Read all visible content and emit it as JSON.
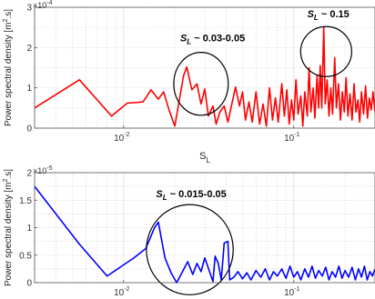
{
  "chart_data": [
    {
      "type": "line",
      "xlabel": "S",
      "xlabel_sub": "L",
      "ylabel": "Power spectral density [m",
      "ylabel_sup": "2",
      "ylabel_tail": ".s]",
      "x_scale": "log",
      "xlim": [
        0.003,
        0.3
      ],
      "ylim": [
        0,
        3
      ],
      "y_multiplier_base": "×10",
      "y_multiplier_exp": "-4",
      "grid": true,
      "x_ticks": [
        {
          "value": 0.01,
          "base": "10",
          "exp": "-2"
        },
        {
          "value": 0.1,
          "base": "10",
          "exp": "-1"
        }
      ],
      "y_ticks": [
        0,
        1,
        2,
        3
      ],
      "series": [
        {
          "color": "#ff0000",
          "points": [
            [
              0.003,
              0.5
            ],
            [
              0.0055,
              1.2
            ],
            [
              0.0085,
              0.3
            ],
            [
              0.0105,
              0.62
            ],
            [
              0.013,
              0.65
            ],
            [
              0.0145,
              0.95
            ],
            [
              0.016,
              0.72
            ],
            [
              0.0172,
              0.9
            ],
            [
              0.0185,
              0.45
            ],
            [
              0.02,
              0.05
            ],
            [
              0.0225,
              1.3
            ],
            [
              0.0235,
              1.52
            ],
            [
              0.0252,
              0.95
            ],
            [
              0.027,
              1.1
            ],
            [
              0.0285,
              0.6
            ],
            [
              0.03,
              0.97
            ],
            [
              0.0315,
              0.3
            ],
            [
              0.0335,
              0.55
            ],
            [
              0.035,
              0.1
            ],
            [
              0.0368,
              0.4
            ],
            [
              0.039,
              0.55
            ],
            [
              0.041,
              0.15
            ],
            [
              0.0435,
              0.65
            ],
            [
              0.0455,
              1.02
            ],
            [
              0.048,
              0.55
            ],
            [
              0.05,
              0.9
            ],
            [
              0.052,
              0.2
            ],
            [
              0.0545,
              0.65
            ],
            [
              0.057,
              0.15
            ],
            [
              0.06,
              0.9
            ],
            [
              0.063,
              0.1
            ],
            [
              0.066,
              0.6
            ],
            [
              0.069,
              0.05
            ],
            [
              0.072,
              1.0
            ],
            [
              0.075,
              0.2
            ],
            [
              0.078,
              0.75
            ],
            [
              0.081,
              0.15
            ],
            [
              0.085,
              1.1
            ],
            [
              0.088,
              0.3
            ],
            [
              0.091,
              0.95
            ],
            [
              0.094,
              0.1
            ],
            [
              0.097,
              0.7
            ],
            [
              0.1,
              0.2
            ],
            [
              0.103,
              1.2
            ],
            [
              0.106,
              0.35
            ],
            [
              0.11,
              0.8
            ],
            [
              0.113,
              0.05
            ],
            [
              0.116,
              0.9
            ],
            [
              0.12,
              0.3
            ],
            [
              0.123,
              1.5
            ],
            [
              0.126,
              0.4
            ],
            [
              0.13,
              1.0
            ],
            [
              0.133,
              0.25
            ],
            [
              0.137,
              1.3
            ],
            [
              0.14,
              0.5
            ],
            [
              0.143,
              1.55
            ],
            [
              0.146,
              0.5
            ],
            [
              0.15,
              2.5
            ],
            [
              0.153,
              0.6
            ],
            [
              0.157,
              1.2
            ],
            [
              0.161,
              0.3
            ],
            [
              0.165,
              1.0
            ],
            [
              0.169,
              0.35
            ],
            [
              0.174,
              1.75
            ],
            [
              0.178,
              0.5
            ],
            [
              0.183,
              1.1
            ],
            [
              0.188,
              0.2
            ],
            [
              0.193,
              0.9
            ],
            [
              0.198,
              0.4
            ],
            [
              0.203,
              1.25
            ],
            [
              0.208,
              0.3
            ],
            [
              0.214,
              0.85
            ],
            [
              0.22,
              0.2
            ],
            [
              0.226,
              1.1
            ],
            [
              0.232,
              0.4
            ],
            [
              0.238,
              0.7
            ],
            [
              0.244,
              0.15
            ],
            [
              0.25,
              0.9
            ],
            [
              0.257,
              0.35
            ],
            [
              0.264,
              1.05
            ],
            [
              0.271,
              0.25
            ],
            [
              0.278,
              0.75
            ],
            [
              0.285,
              0.45
            ],
            [
              0.292,
              0.9
            ],
            [
              0.3,
              0.4
            ]
          ]
        }
      ],
      "annotations": [
        {
          "text": "S",
          "sub": "L",
          "tail": " ~ 0.03-0.05",
          "x": 0.0215,
          "y": 2.15
        },
        {
          "text": "S",
          "sub": "L",
          "tail": " ~ 0.15",
          "x": 0.12,
          "y": 2.75
        }
      ],
      "ellipses": [
        {
          "cx": 0.0285,
          "cy": 1.1,
          "rx_decades": 0.16,
          "ry": 0.78
        },
        {
          "cx": 0.155,
          "cy": 1.9,
          "rx_decades": 0.15,
          "ry": 0.62
        }
      ]
    },
    {
      "type": "line",
      "xlabel": "",
      "ylabel": "Power spectral density [m",
      "ylabel_sup": "2",
      "ylabel_tail": ".s]",
      "x_scale": "log",
      "xlim": [
        0.003,
        0.3
      ],
      "ylim": [
        0,
        2
      ],
      "y_multiplier_base": "×10",
      "y_multiplier_exp": "-5",
      "grid": true,
      "x_ticks": [
        {
          "value": 0.01,
          "base": "10",
          "exp": "-2"
        },
        {
          "value": 0.1,
          "base": "10",
          "exp": "-1"
        }
      ],
      "y_ticks": [
        0,
        0.5,
        1,
        1.5,
        2
      ],
      "series": [
        {
          "color": "#0000ff",
          "points": [
            [
              0.003,
              1.75
            ],
            [
              0.0055,
              0.7
            ],
            [
              0.008,
              0.12
            ],
            [
              0.0115,
              0.45
            ],
            [
              0.0135,
              0.62
            ],
            [
              0.0152,
              1.0
            ],
            [
              0.016,
              1.1
            ],
            [
              0.0175,
              0.45
            ],
            [
              0.019,
              0.18
            ],
            [
              0.0205,
              0.0
            ],
            [
              0.0222,
              0.2
            ],
            [
              0.0238,
              0.38
            ],
            [
              0.0255,
              0.15
            ],
            [
              0.027,
              0.35
            ],
            [
              0.0285,
              0.2
            ],
            [
              0.03,
              0.45
            ],
            [
              0.032,
              0.2
            ],
            [
              0.0335,
              0.02
            ],
            [
              0.0345,
              0.48
            ],
            [
              0.036,
              0.35
            ],
            [
              0.0375,
              0.05
            ],
            [
              0.039,
              0.72
            ],
            [
              0.041,
              0.75
            ],
            [
              0.042,
              0.05
            ],
            [
              0.0445,
              0.1
            ],
            [
              0.047,
              0.2
            ],
            [
              0.05,
              0.07
            ],
            [
              0.053,
              0.18
            ],
            [
              0.056,
              0.05
            ],
            [
              0.06,
              0.22
            ],
            [
              0.064,
              0.1
            ],
            [
              0.068,
              0.25
            ],
            [
              0.072,
              0.05
            ],
            [
              0.076,
              0.2
            ],
            [
              0.08,
              0.12
            ],
            [
              0.085,
              0.25
            ],
            [
              0.09,
              0.08
            ],
            [
              0.095,
              0.3
            ],
            [
              0.1,
              0.1
            ],
            [
              0.105,
              0.2
            ],
            [
              0.11,
              0.05
            ],
            [
              0.116,
              0.25
            ],
            [
              0.122,
              0.1
            ],
            [
              0.128,
              0.3
            ],
            [
              0.134,
              0.08
            ],
            [
              0.14,
              0.22
            ],
            [
              0.147,
              0.12
            ],
            [
              0.154,
              0.28
            ],
            [
              0.161,
              0.05
            ],
            [
              0.168,
              0.2
            ],
            [
              0.176,
              0.1
            ],
            [
              0.184,
              0.3
            ],
            [
              0.192,
              0.08
            ],
            [
              0.2,
              0.22
            ],
            [
              0.21,
              0.1
            ],
            [
              0.22,
              0.28
            ],
            [
              0.23,
              0.05
            ],
            [
              0.24,
              0.25
            ],
            [
              0.25,
              0.1
            ],
            [
              0.26,
              0.3
            ],
            [
              0.27,
              0.05
            ],
            [
              0.28,
              0.2
            ],
            [
              0.29,
              0.12
            ],
            [
              0.3,
              0.25
            ]
          ]
        }
      ],
      "annotations": [
        {
          "text": "S",
          "sub": "L",
          "tail": " ~ 0.015-0.05",
          "x": 0.0155,
          "y": 1.55
        }
      ],
      "ellipses": [
        {
          "cx": 0.0245,
          "cy": 0.6,
          "rx_decades": 0.255,
          "ry": 0.82
        }
      ]
    }
  ]
}
